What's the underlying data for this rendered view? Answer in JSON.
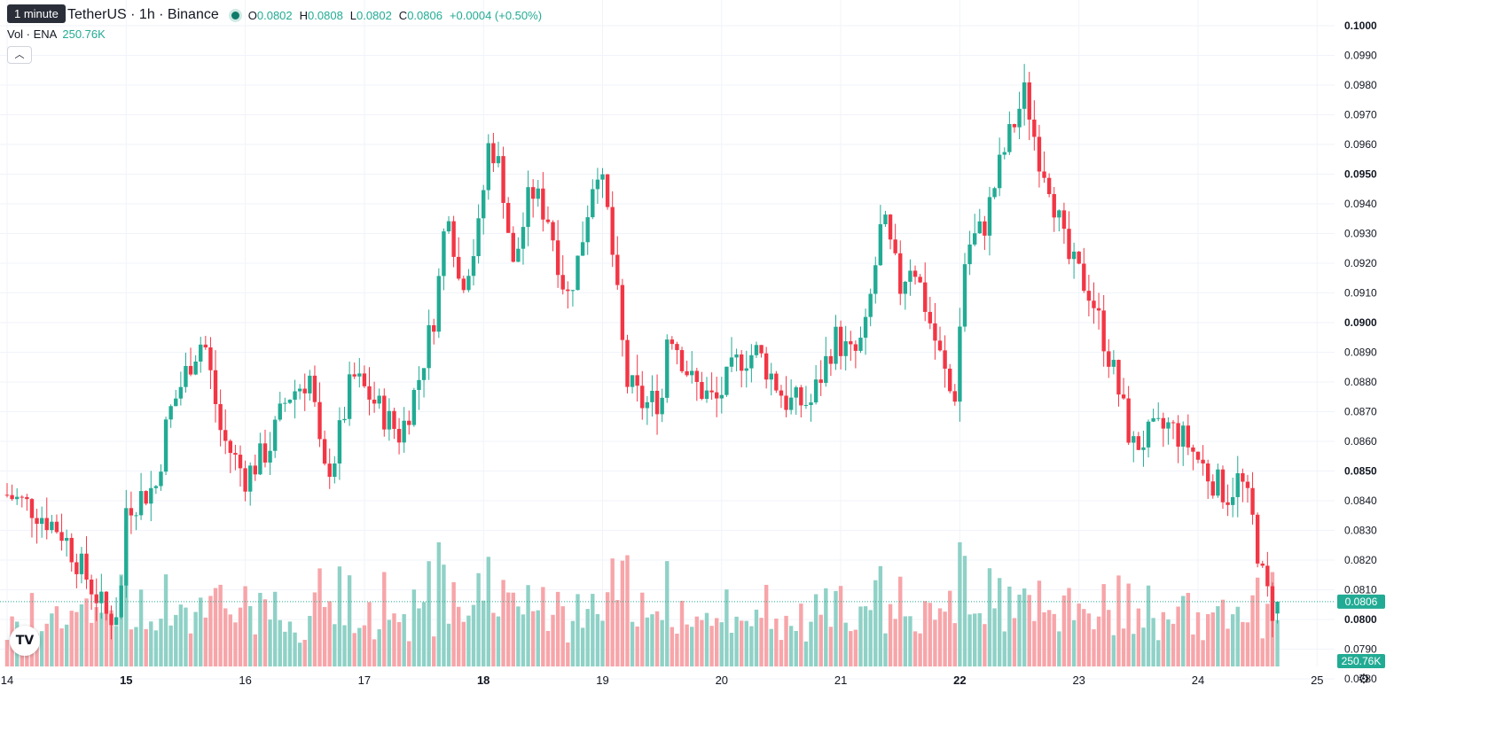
{
  "legend": {
    "symbol": "TetherUS · 1h · Binance",
    "open_label": "O",
    "open": "0.0802",
    "high_label": "H",
    "high": "0.0808",
    "low_label": "L",
    "low": "0.0802",
    "close_label": "C",
    "close": "0.0806",
    "change": "+0.0004 (+0.50%)",
    "volume_label": "Vol · ENA",
    "volume": "250.76K"
  },
  "tooltip": "1 minute",
  "collapse_icon": "chevron-up-icon",
  "last_price_badge": "0.0806",
  "volume_badge": "250.76K",
  "colors": {
    "up": "#22ab94",
    "down": "#f23645",
    "up_vol": "#8fd1c6",
    "down_vol": "#f7a5a9"
  },
  "chart_data": {
    "type": "candlestick",
    "interval": "1h",
    "y_axis": {
      "range": [
        0.077,
        0.1003
      ],
      "tick_labels": [
        "0.1000",
        "0.0990",
        "0.0980",
        "0.0970",
        "0.0960",
        "0.0950",
        "0.0940",
        "0.0930",
        "0.0920",
        "0.0910",
        "0.0900",
        "0.0890",
        "0.0880",
        "0.0870",
        "0.0860",
        "0.0850",
        "0.0840",
        "0.0830",
        "0.0820",
        "0.0810",
        "0.0800",
        "0.0790",
        "0.0780"
      ],
      "bold_ticks": [
        "0.1000",
        "0.0950",
        "0.0900",
        "0.0850",
        "0.0800"
      ]
    },
    "x_axis": {
      "tick_labels": [
        "14",
        "15",
        "16",
        "17",
        "18",
        "19",
        "20",
        "21",
        "22",
        "23",
        "24",
        "25"
      ],
      "bold_ticks": [
        "15",
        "18",
        "22"
      ]
    },
    "last_price": 0.0806,
    "waypoints": [
      {
        "day": 14.0,
        "price": 0.0842
      },
      {
        "day": 14.2,
        "price": 0.0838
      },
      {
        "day": 14.45,
        "price": 0.083
      },
      {
        "day": 14.75,
        "price": 0.0808
      },
      {
        "day": 14.85,
        "price": 0.08
      },
      {
        "day": 14.95,
        "price": 0.0805
      },
      {
        "day": 15.0,
        "price": 0.0838
      },
      {
        "day": 15.25,
        "price": 0.0845
      },
      {
        "day": 15.35,
        "price": 0.0868
      },
      {
        "day": 15.55,
        "price": 0.0888
      },
      {
        "day": 15.65,
        "price": 0.0895
      },
      {
        "day": 15.8,
        "price": 0.0862
      },
      {
        "day": 16.0,
        "price": 0.0848
      },
      {
        "day": 16.2,
        "price": 0.0858
      },
      {
        "day": 16.35,
        "price": 0.0875
      },
      {
        "day": 16.55,
        "price": 0.0882
      },
      {
        "day": 16.65,
        "price": 0.0848
      },
      {
        "day": 16.75,
        "price": 0.0855
      },
      {
        "day": 16.9,
        "price": 0.0882
      },
      {
        "day": 17.05,
        "price": 0.0875
      },
      {
        "day": 17.3,
        "price": 0.0862
      },
      {
        "day": 17.45,
        "price": 0.088
      },
      {
        "day": 17.6,
        "price": 0.0905
      },
      {
        "day": 17.7,
        "price": 0.0942
      },
      {
        "day": 17.8,
        "price": 0.0912
      },
      {
        "day": 17.95,
        "price": 0.0928
      },
      {
        "day": 18.05,
        "price": 0.0962
      },
      {
        "day": 18.15,
        "price": 0.095
      },
      {
        "day": 18.25,
        "price": 0.0918
      },
      {
        "day": 18.4,
        "price": 0.0945
      },
      {
        "day": 18.55,
        "price": 0.0935
      },
      {
        "day": 18.7,
        "price": 0.0908
      },
      {
        "day": 18.8,
        "price": 0.0922
      },
      {
        "day": 18.95,
        "price": 0.0955
      },
      {
        "day": 19.05,
        "price": 0.0935
      },
      {
        "day": 19.2,
        "price": 0.088
      },
      {
        "day": 19.35,
        "price": 0.0872
      },
      {
        "day": 19.5,
        "price": 0.0875
      },
      {
        "day": 19.55,
        "price": 0.09
      },
      {
        "day": 19.75,
        "price": 0.088
      },
      {
        "day": 19.95,
        "price": 0.0873
      },
      {
        "day": 20.15,
        "price": 0.0888
      },
      {
        "day": 20.3,
        "price": 0.089
      },
      {
        "day": 20.45,
        "price": 0.088
      },
      {
        "day": 20.55,
        "price": 0.0873
      },
      {
        "day": 20.75,
        "price": 0.0873
      },
      {
        "day": 20.95,
        "price": 0.0895
      },
      {
        "day": 21.1,
        "price": 0.0888
      },
      {
        "day": 21.2,
        "price": 0.0895
      },
      {
        "day": 21.35,
        "price": 0.0935
      },
      {
        "day": 21.5,
        "price": 0.0912
      },
      {
        "day": 21.6,
        "price": 0.0922
      },
      {
        "day": 21.75,
        "price": 0.09
      },
      {
        "day": 21.95,
        "price": 0.0872
      },
      {
        "day": 22.05,
        "price": 0.0925
      },
      {
        "day": 22.2,
        "price": 0.0932
      },
      {
        "day": 22.35,
        "price": 0.0955
      },
      {
        "day": 22.55,
        "price": 0.0978
      },
      {
        "day": 22.65,
        "price": 0.0958
      },
      {
        "day": 22.75,
        "price": 0.0948
      },
      {
        "day": 22.9,
        "price": 0.0922
      },
      {
        "day": 23.1,
        "price": 0.091
      },
      {
        "day": 23.3,
        "price": 0.0882
      },
      {
        "day": 23.45,
        "price": 0.0858
      },
      {
        "day": 23.6,
        "price": 0.0862
      },
      {
        "day": 23.75,
        "price": 0.0865
      },
      {
        "day": 23.9,
        "price": 0.086
      },
      {
        "day": 24.1,
        "price": 0.0848
      },
      {
        "day": 24.25,
        "price": 0.0842
      },
      {
        "day": 24.35,
        "price": 0.0848
      },
      {
        "day": 24.45,
        "price": 0.0835
      },
      {
        "day": 24.55,
        "price": 0.0812
      },
      {
        "day": 24.63,
        "price": 0.0803
      },
      {
        "day": 24.67,
        "price": 0.0806
      }
    ]
  }
}
